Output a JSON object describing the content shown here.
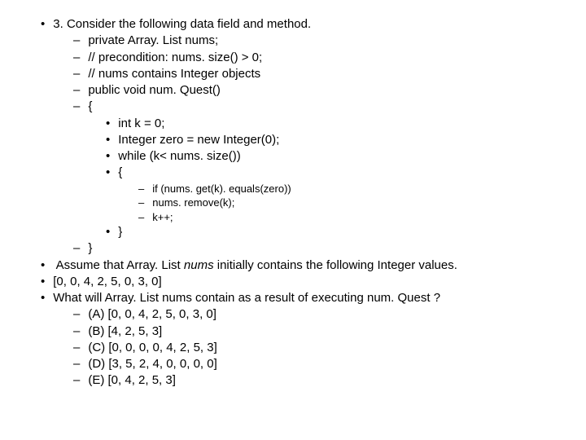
{
  "q": {
    "intro": "3. Consider the following data field and method.",
    "line1": "private Array. List nums;",
    "line2": "// precondition: nums. size() > 0;",
    "line3": "// nums contains Integer objects",
    "line4": "public void num. Quest()",
    "line5": "{",
    "body1": "int k = 0;",
    "body2": "Integer zero = new Integer(0);",
    "body3": "while (k< nums. size())",
    "body4": "{",
    "inner1": "if (nums. get(k). equals(zero))",
    "inner2": "nums. remove(k);",
    "inner3": "k++;",
    "closeInner": "}",
    "closeMethod": "}",
    "assume_a": "Assume that Array. List ",
    "assume_italic": "nums",
    "assume_b": " initially contains the following Integer values.",
    "initvals": "[0, 0, 4, 2, 5, 0, 3, 0]",
    "ask": "What will Array. List nums contain as a result of executing num. Quest ?",
    "optA": "(A) [0, 0, 4, 2, 5, 0, 3, 0]",
    "optB": "(B) [4, 2, 5, 3]",
    "optC": "(C) [0, 0, 0, 0, 4, 2, 5, 3]",
    "optD": "(D) [3, 5, 2, 4, 0, 0, 0, 0]",
    "optE": "(E) [0, 4, 2, 5, 3]"
  }
}
